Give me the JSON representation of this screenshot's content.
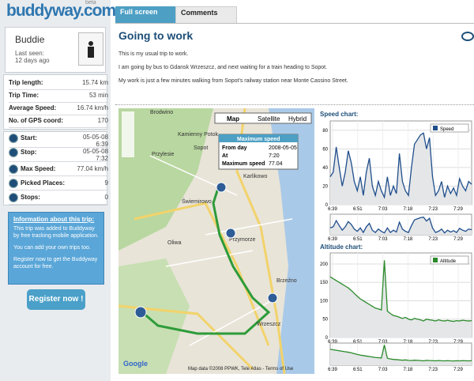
{
  "logo": {
    "name": "buddyway.com",
    "badge": "beta"
  },
  "profile": {
    "name": "Buddie",
    "last_seen_label": "Last seen:",
    "last_seen": "12 days ago"
  },
  "stats": [
    [
      "Trip length:",
      "15.74 km"
    ],
    [
      "Trip Time:",
      "53 min"
    ],
    [
      "Average Speed:",
      "16.74 km/h"
    ],
    [
      "No. of GPS coord:",
      "170"
    ]
  ],
  "trip": [
    [
      "Start:",
      "05-05-08",
      "6:39"
    ],
    [
      "Stop:",
      "05-05-08",
      "7:32"
    ],
    [
      "Max Speed:",
      "77.04 km/h",
      ""
    ],
    [
      "Picked Places:",
      "9",
      ""
    ],
    [
      "Stops:",
      "0",
      ""
    ]
  ],
  "info": {
    "title": "Information about this trip:",
    "lines": [
      "This trip was added to Buddyway by free tracking mobile application.",
      "You can add your own trips too.",
      "Register now to get the Buddyway account for free."
    ]
  },
  "register": "Register now !",
  "tabs": [
    "Full screen",
    "Comments"
  ],
  "content": {
    "title": "Going to work",
    "paragraphs": [
      "This is my usual trip to work.",
      "I am going by bus to Gdansk Wrzeszcz, and next waiting for a train heading to Sopot.",
      "My work is just a few minutes walking from Sopot's railway station near Monte Cassino Street."
    ]
  },
  "map": {
    "buttons": [
      "Map",
      "Satellite",
      "Hybrid"
    ],
    "popup": {
      "title": "Maximum speed",
      "rows": [
        [
          "From day",
          "2008-05-05"
        ],
        [
          "At",
          "7:20"
        ],
        [
          "Maximum speed",
          "77.04"
        ]
      ]
    },
    "places": [
      "Brodwino",
      "Kamienny Potok",
      "Przylesie",
      "Sopot",
      "Karlikowo",
      "Świemirowo",
      "Oliwa",
      "Przymorze",
      "Brzeźno",
      "Wrzeszcz"
    ],
    "copyright": "Map data ©2008 PPWK, Tele Atlas - Terms of Use",
    "brand": "Google"
  },
  "speed_chart": {
    "type": "line",
    "title": "Speed chart:",
    "series": [
      {
        "name": "Speed",
        "color": "#1f4e8c",
        "values": [
          30,
          35,
          62,
          40,
          20,
          35,
          58,
          45,
          25,
          15,
          30,
          10,
          35,
          50,
          20,
          10,
          25,
          15,
          8,
          30,
          10,
          20,
          12,
          55,
          25,
          15,
          10,
          40,
          65,
          70,
          75,
          77,
          60,
          72,
          30,
          10,
          15,
          25,
          8,
          20,
          12,
          18,
          10,
          28,
          20,
          15,
          25,
          22
        ]
      }
    ],
    "xticks": [
      "6:39",
      "6:51",
      "7:03",
      "7:18",
      "7:23",
      "7:29"
    ],
    "ylim": [
      0,
      90
    ],
    "yticks": [
      0,
      20,
      40,
      60,
      80
    ],
    "grid": true
  },
  "altitude_chart": {
    "type": "line",
    "title": "Altitude chart:",
    "series": [
      {
        "name": "Altitude",
        "color": "#2a8a2a",
        "values": [
          165,
          160,
          155,
          150,
          145,
          140,
          135,
          128,
          120,
          112,
          105,
          100,
          95,
          90,
          85,
          80,
          78,
          75,
          210,
          72,
          65,
          60,
          58,
          55,
          52,
          55,
          50,
          48,
          52,
          50,
          48,
          45,
          50,
          48,
          47,
          45,
          48,
          46,
          45,
          47,
          45,
          44,
          46,
          45,
          47,
          46,
          45,
          46
        ]
      }
    ],
    "xticks": [
      "6:39",
      "6:51",
      "7:03",
      "7:18",
      "7:23",
      "7:29"
    ],
    "ylim": [
      0,
      230
    ],
    "yticks": [
      0,
      50,
      100,
      150,
      200
    ],
    "grid": true
  }
}
